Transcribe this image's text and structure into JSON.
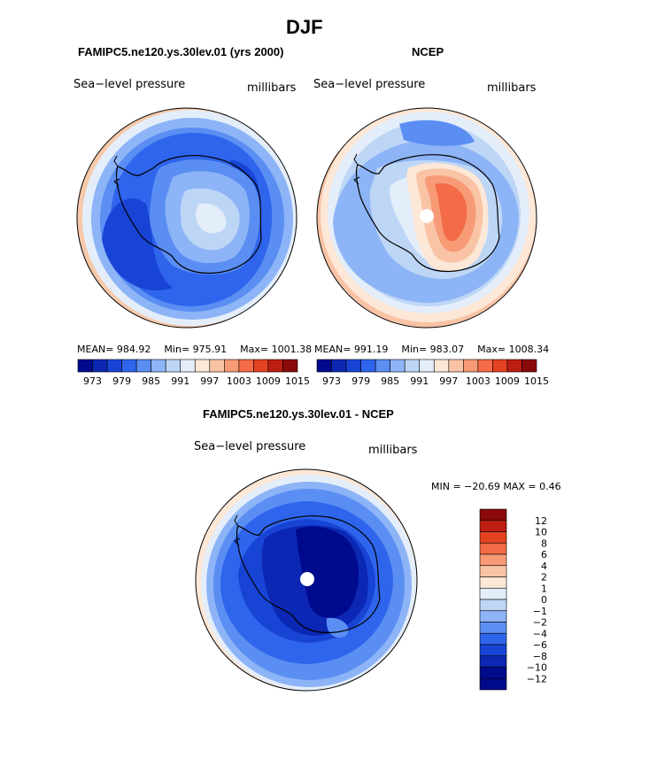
{
  "page_title": "DJF",
  "colors": {
    "abs_scale": [
      "#000a8c",
      "#0b27b3",
      "#1844d6",
      "#2f64ec",
      "#5a8ef3",
      "#8db4f6",
      "#bed6f6",
      "#e4eefa",
      "#fde7d6",
      "#f9c3a6",
      "#f79b76",
      "#f46b47",
      "#e44220",
      "#bd1e12",
      "#8a0a0a"
    ],
    "diff_scale": [
      "#000a8c",
      "#0b27b3",
      "#1844d6",
      "#2f64ec",
      "#5a8ef3",
      "#8db4f6",
      "#bed6f6",
      "#e4eefa",
      "#fde7d6",
      "#f9c3a6",
      "#f79b76",
      "#f46b47",
      "#e44220",
      "#bd1e12",
      "#8a0a0a"
    ],
    "coast": "#000000",
    "border": "#000000"
  },
  "panels": [
    {
      "title": "FAMIPC5.ne120.ys.30lev.01 (yrs 2000)",
      "left_label": "Sea−level pressure",
      "right_label": "millibars",
      "stats": {
        "mean_label": "MEAN=",
        "mean": "984.92",
        "min_label": "Min=",
        "min": "975.91",
        "max_label": "Max=",
        "max": "1001.38"
      },
      "colorbar_ticks": [
        "973",
        "979",
        "985",
        "991",
        "997",
        "1003",
        "1009",
        "1015"
      ]
    },
    {
      "title": "NCEP",
      "left_label": "Sea−level pressure",
      "right_label": "millibars",
      "stats": {
        "mean_label": "MEAN=",
        "mean": "991.19",
        "min_label": "Min=",
        "min": "983.07",
        "max_label": "Max=",
        "max": "1008.34"
      },
      "colorbar_ticks": [
        "973",
        "979",
        "985",
        "991",
        "997",
        "1003",
        "1009",
        "1015"
      ]
    },
    {
      "title": "FAMIPC5.ne120.ys.30lev.01 - NCEP",
      "left_label": "Sea−level pressure",
      "right_label": "millibars",
      "stats_line": "MIN = −20.69 MAX =    0.46",
      "colorbar_ticks": [
        "12",
        "10",
        "8",
        "6",
        "4",
        "2",
        "1",
        "0",
        "−1",
        "−2",
        "−4",
        "−6",
        "−8",
        "−10",
        "−12"
      ]
    }
  ],
  "chart_data": [
    {
      "type": "heatmap",
      "projection": "south-polar-stereographic",
      "title": "FAMIPC5.ne120.ys.30lev.01 (yrs 2000)",
      "variable": "Sea-level pressure",
      "units": "millibars",
      "season": "DJF",
      "mean": 984.92,
      "min": 975.91,
      "max": 1001.38,
      "contour_levels": [
        973,
        976,
        979,
        982,
        985,
        988,
        991,
        994,
        997,
        1000,
        1003,
        1006,
        1009,
        1012,
        1015
      ]
    },
    {
      "type": "heatmap",
      "projection": "south-polar-stereographic",
      "title": "NCEP",
      "variable": "Sea-level pressure",
      "units": "millibars",
      "season": "DJF",
      "mean": 991.19,
      "min": 983.07,
      "max": 1008.34,
      "contour_levels": [
        973,
        976,
        979,
        982,
        985,
        988,
        991,
        994,
        997,
        1000,
        1003,
        1006,
        1009,
        1012,
        1015
      ]
    },
    {
      "type": "heatmap",
      "projection": "south-polar-stereographic",
      "title": "FAMIPC5.ne120.ys.30lev.01 - NCEP",
      "variable": "Sea-level pressure",
      "units": "millibars",
      "season": "DJF",
      "min": -20.69,
      "max": 0.46,
      "contour_levels": [
        -12,
        -10,
        -8,
        -6,
        -4,
        -2,
        -1,
        0,
        1,
        2,
        4,
        6,
        8,
        10,
        12
      ]
    }
  ]
}
